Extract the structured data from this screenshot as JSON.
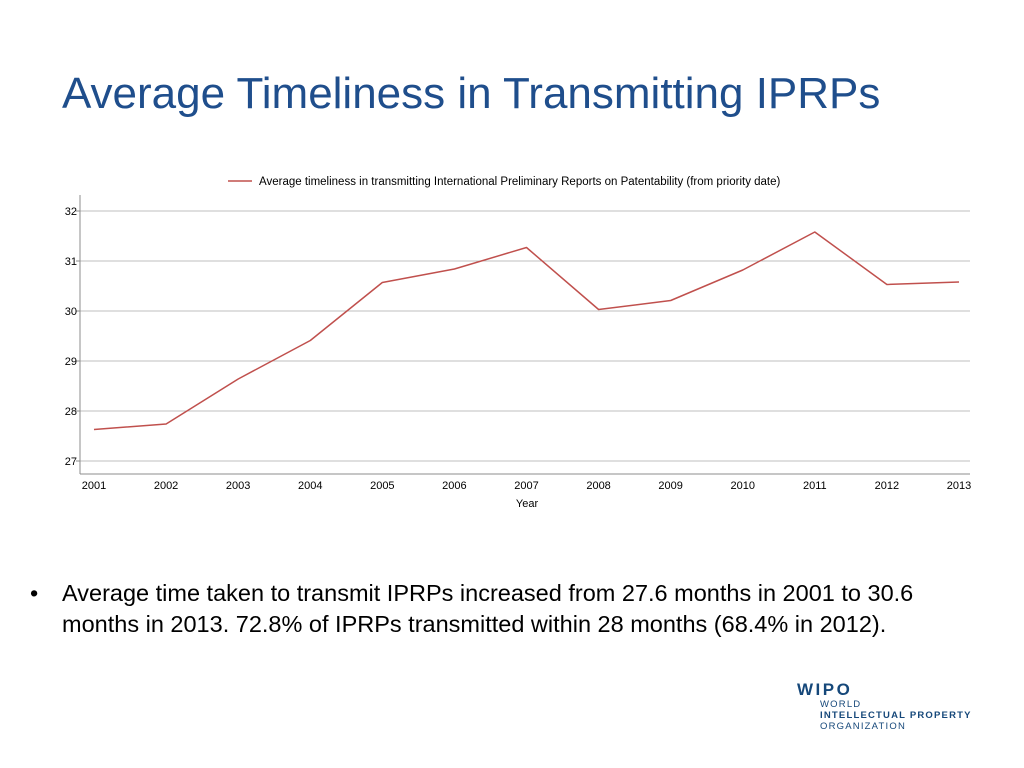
{
  "slide": {
    "title": "Average Timeliness in Transmitting IPRPs",
    "bullet_symbol": "•",
    "bullet_text": "Average time taken to transmit IPRPs increased from 27.6 months in 2001 to 30.6 months in 2013.  72.8% of IPRPs transmitted within 28 months (68.4% in 2012).",
    "title_color": "#1f4e8c"
  },
  "logo": {
    "name": "WIPO",
    "line1": "WORLD",
    "line2": "INTELLECTUAL PROPERTY",
    "line3": "ORGANIZATION",
    "color": "#16487a",
    "accent_color": "#7f8aa0"
  },
  "chart_data": {
    "type": "line",
    "xlabel": "Year",
    "ylabel": "",
    "ylim": [
      27,
      32
    ],
    "yticks": [
      27,
      28,
      29,
      30,
      31,
      32
    ],
    "categories": [
      "2001",
      "2002",
      "2003",
      "2004",
      "2005",
      "2006",
      "2007",
      "2008",
      "2009",
      "2010",
      "2011",
      "2012",
      "2013"
    ],
    "series": [
      {
        "name": "Average timeliness in transmitting International Preliminary Reports on Patentability (from priority date)",
        "color": "#c0504d",
        "values": [
          27.63,
          27.74,
          28.64,
          29.41,
          30.57,
          30.84,
          31.27,
          30.03,
          30.21,
          30.82,
          31.58,
          30.53,
          30.58
        ]
      }
    ],
    "grid": true,
    "legend_position": "top"
  }
}
